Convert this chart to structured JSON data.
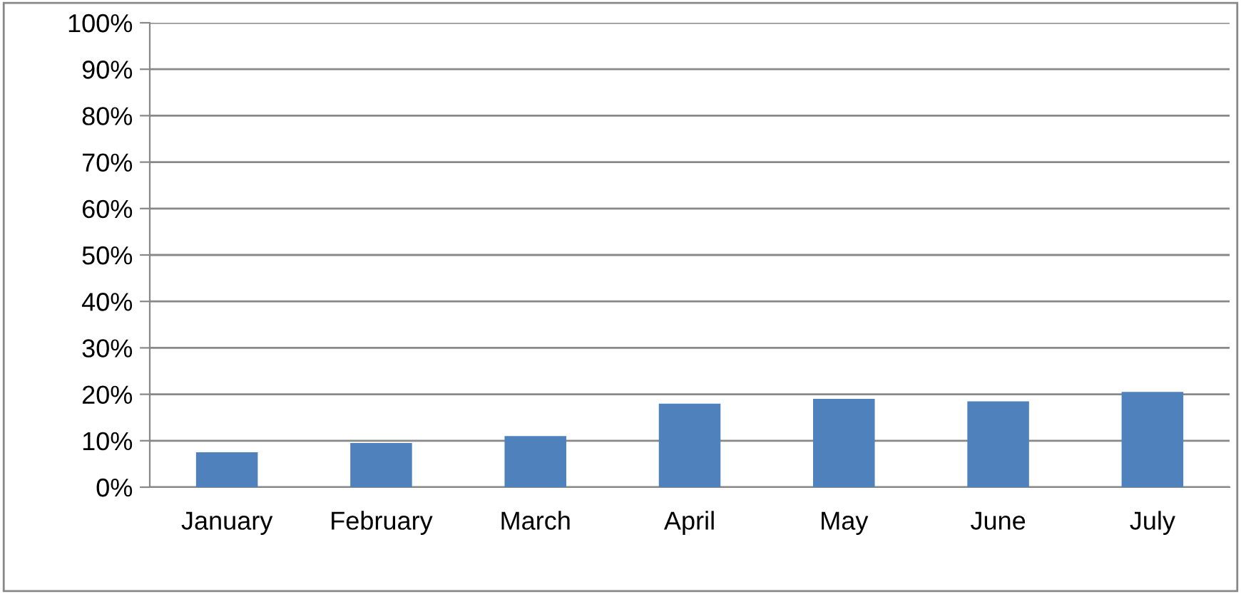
{
  "chart_data": {
    "type": "bar",
    "categories": [
      "January",
      "February",
      "March",
      "April",
      "May",
      "June",
      "July"
    ],
    "values": [
      7.5,
      9.5,
      11,
      18,
      19,
      18.5,
      20.5
    ],
    "color": "#4f81bd",
    "ylim": [
      0,
      100
    ],
    "yticks": [
      {
        "value": 0,
        "label": "0%"
      },
      {
        "value": 10,
        "label": "10%"
      },
      {
        "value": 20,
        "label": "20%"
      },
      {
        "value": 30,
        "label": "30%"
      },
      {
        "value": 40,
        "label": "40%"
      },
      {
        "value": 50,
        "label": "50%"
      },
      {
        "value": 60,
        "label": "60%"
      },
      {
        "value": 70,
        "label": "70%"
      },
      {
        "value": 80,
        "label": "80%"
      },
      {
        "value": 90,
        "label": "90%"
      },
      {
        "value": 100,
        "label": "100%"
      }
    ],
    "grid": "y",
    "legend": false
  }
}
